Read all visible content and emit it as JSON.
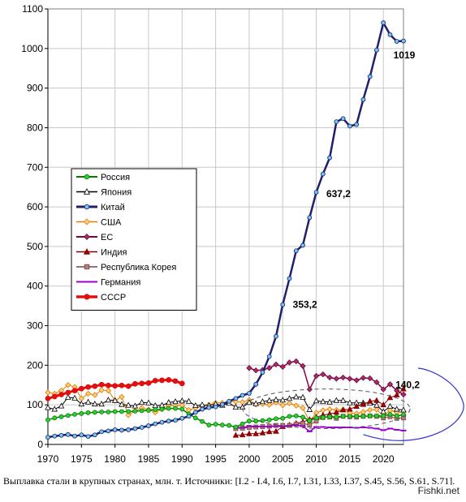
{
  "caption": "Выплавка стали в крупных странах, млн. т. Источники: [I.2 - I.4, I.6, I.7, I.31, I.33, I.37, S.45, S.56, S.61, S.71].",
  "watermark": "Fishki.net",
  "chart_data": {
    "type": "line",
    "title": "",
    "xlabel": "",
    "ylabel": "",
    "xlim": [
      1970,
      2023
    ],
    "ylim": [
      0,
      1100
    ],
    "xticks": [
      1970,
      1975,
      1980,
      1985,
      1990,
      1995,
      2000,
      2005,
      2010,
      2015,
      2020
    ],
    "yticks": [
      0,
      100,
      200,
      300,
      400,
      500,
      600,
      700,
      800,
      900,
      1000,
      1100
    ],
    "grid": "vertical and horizontal",
    "legend": "left-center",
    "annotations": [
      {
        "text": "1019",
        "x": 2021.5,
        "y": 975
      },
      {
        "text": "637,2",
        "x": 2011.5,
        "y": 625
      },
      {
        "text": "353,2",
        "x": 2006.5,
        "y": 345
      },
      {
        "text": "140,2",
        "x": 2021.8,
        "y": 142
      }
    ],
    "series": [
      {
        "name": "Россия",
        "color": "#008000",
        "marker_fill": "#33cc33",
        "marker": "circle",
        "width": 1.5,
        "x": [
          1970,
          1971,
          1972,
          1973,
          1974,
          1975,
          1976,
          1977,
          1978,
          1979,
          1980,
          1981,
          1982,
          1983,
          1984,
          1985,
          1986,
          1987,
          1988,
          1989,
          1990,
          1991,
          1992,
          1993,
          1994,
          1995,
          1996,
          1997,
          1998,
          1999,
          2000,
          2001,
          2002,
          2003,
          2004,
          2005,
          2006,
          2007,
          2008,
          2009,
          2010,
          2011,
          2012,
          2013,
          2014,
          2015,
          2016,
          2017,
          2018,
          2019,
          2020,
          2021,
          2022,
          2023
        ],
        "values": [
          62,
          67,
          70,
          73,
          76,
          78,
          80,
          81,
          82,
          82,
          83,
          83,
          83,
          84,
          85,
          86,
          88,
          89,
          91,
          91,
          89,
          77,
          67,
          58,
          49,
          51,
          49,
          48,
          44,
          52,
          59,
          59,
          60,
          62,
          65,
          66,
          71,
          72,
          69,
          60,
          67,
          68,
          70,
          69,
          71,
          71,
          71,
          71,
          72,
          72,
          72,
          76,
          72,
          75
        ]
      },
      {
        "name": "Япония",
        "color": "#000000",
        "marker_fill": "#ffffff",
        "marker": "triangle",
        "width": 1,
        "x": [
          1970,
          1971,
          1972,
          1973,
          1974,
          1975,
          1976,
          1977,
          1978,
          1979,
          1980,
          1981,
          1982,
          1983,
          1984,
          1985,
          1986,
          1987,
          1988,
          1989,
          1990,
          1991,
          1992,
          1993,
          1994,
          1995,
          1996,
          1997,
          1998,
          1999,
          2000,
          2001,
          2002,
          2003,
          2004,
          2005,
          2006,
          2007,
          2008,
          2009,
          2010,
          2011,
          2012,
          2013,
          2014,
          2015,
          2016,
          2017,
          2018,
          2019,
          2020,
          2021,
          2022,
          2023
        ],
        "values": [
          93,
          89,
          97,
          119,
          117,
          102,
          107,
          102,
          102,
          112,
          111,
          101,
          99,
          97,
          106,
          105,
          98,
          99,
          106,
          108,
          110,
          109,
          98,
          100,
          98,
          102,
          99,
          104,
          94,
          94,
          106,
          103,
          108,
          111,
          113,
          112,
          116,
          120,
          119,
          88,
          110,
          108,
          107,
          111,
          111,
          105,
          105,
          105,
          104,
          99,
          83,
          96,
          89,
          87
        ]
      },
      {
        "name": "Китай",
        "color": "#1f1f6b",
        "marker_fill": "#6ec6f0",
        "marker": "circle",
        "width": 2.5,
        "x": [
          1970,
          1971,
          1972,
          1973,
          1974,
          1975,
          1976,
          1977,
          1978,
          1979,
          1980,
          1981,
          1982,
          1983,
          1984,
          1985,
          1986,
          1987,
          1988,
          1989,
          1990,
          1991,
          1992,
          1993,
          1994,
          1995,
          1996,
          1997,
          1998,
          1999,
          2000,
          2001,
          2002,
          2003,
          2004,
          2005,
          2006,
          2007,
          2008,
          2009,
          2010,
          2011,
          2012,
          2013,
          2014,
          2015,
          2016,
          2017,
          2018,
          2019,
          2020,
          2021,
          2022,
          2023
        ],
        "values": [
          18,
          21,
          23,
          25,
          21,
          24,
          20,
          24,
          32,
          34,
          37,
          36,
          37,
          40,
          43,
          47,
          52,
          56,
          59,
          61,
          66,
          71,
          81,
          89,
          93,
          95,
          101,
          109,
          116,
          124,
          129,
          152,
          182,
          222,
          273,
          353,
          419,
          489,
          503,
          573,
          637,
          683,
          724,
          815,
          823,
          804,
          808,
          871,
          929,
          996,
          1065,
          1035,
          1018,
          1019
        ]
      },
      {
        "name": "США",
        "color": "#e07a00",
        "marker_fill": "#ffd080",
        "marker": "diamond",
        "width": 1,
        "x": [
          1970,
          1971,
          1972,
          1973,
          1974,
          1975,
          1976,
          1977,
          1978,
          1979,
          1980,
          1981,
          1982,
          1983,
          1984,
          1985,
          1986,
          1987,
          1988,
          1989,
          1990,
          1991,
          1992,
          1993,
          1994,
          1995,
          1996,
          1997,
          1998,
          1999,
          2000,
          2001,
          2002,
          2003,
          2004,
          2005,
          2006,
          2007,
          2008,
          2009,
          2010,
          2011,
          2012,
          2013,
          2014,
          2015,
          2016,
          2017,
          2018,
          2019,
          2020,
          2021,
          2022,
          2023
        ],
        "values": [
          131,
          128,
          136,
          150,
          145,
          116,
          128,
          125,
          137,
          136,
          111,
          120,
          74,
          85,
          92,
          88,
          81,
          89,
          99,
          97,
          99,
          87,
          92,
          97,
          100,
          105,
          105,
          108,
          108,
          107,
          112,
          101,
          102,
          100,
          106,
          99,
          104,
          98,
          92,
          58,
          80,
          86,
          89,
          87,
          88,
          79,
          78,
          82,
          87,
          88,
          72,
          86,
          81,
          82
        ]
      },
      {
        "name": "ЕС",
        "color": "#800040",
        "marker_fill": "#a0306a",
        "marker": "diamond",
        "width": 1.5,
        "x": [
          2000,
          2001,
          2002,
          2003,
          2004,
          2005,
          2006,
          2007,
          2008,
          2009,
          2010,
          2011,
          2012,
          2013,
          2014,
          2015,
          2016,
          2017,
          2018,
          2019,
          2020,
          2021,
          2022,
          2023
        ],
        "values": [
          193,
          187,
          188,
          193,
          202,
          196,
          207,
          210,
          198,
          139,
          173,
          177,
          169,
          166,
          169,
          166,
          162,
          168,
          167,
          157,
          139,
          152,
          136,
          126
        ]
      },
      {
        "name": "Индия",
        "color": "#800000",
        "marker_fill": "#a00000",
        "marker": "triangle",
        "width": 1,
        "x": [
          1998,
          1999,
          2000,
          2001,
          2002,
          2003,
          2004,
          2005,
          2006,
          2007,
          2008,
          2009,
          2010,
          2011,
          2012,
          2013,
          2014,
          2015,
          2016,
          2017,
          2018,
          2019,
          2020,
          2021,
          2022,
          2023
        ],
        "values": [
          23,
          24,
          27,
          27,
          29,
          32,
          33,
          45,
          49,
          53,
          57,
          63,
          69,
          74,
          77,
          81,
          87,
          89,
          96,
          101,
          109,
          111,
          100,
          118,
          125,
          140.2
        ]
      },
      {
        "name": "Республика Корея",
        "color": "#804040",
        "marker_fill": "#b08080",
        "marker": "square",
        "width": 1,
        "x": [
          1998,
          1999,
          2000,
          2001,
          2002,
          2003,
          2004,
          2005,
          2006,
          2007,
          2008,
          2009,
          2010,
          2011,
          2012,
          2013,
          2014,
          2015,
          2016,
          2017,
          2018,
          2019,
          2020,
          2021,
          2022,
          2023
        ],
        "values": [
          40,
          41,
          43,
          44,
          45,
          46,
          48,
          48,
          48,
          51,
          53,
          49,
          59,
          68,
          69,
          66,
          71,
          70,
          69,
          71,
          72,
          71,
          67,
          70,
          66,
          67
        ]
      },
      {
        "name": "Германия",
        "color": "#9900cc",
        "marker_fill": "#9900cc",
        "marker": "dash",
        "width": 1.5,
        "x": [
          1998,
          1999,
          2000,
          2001,
          2002,
          2003,
          2004,
          2005,
          2006,
          2007,
          2008,
          2009,
          2010,
          2011,
          2012,
          2013,
          2014,
          2015,
          2016,
          2017,
          2018,
          2019,
          2020,
          2021,
          2022,
          2023
        ],
        "values": [
          44,
          42,
          46,
          45,
          45,
          45,
          46,
          45,
          47,
          49,
          46,
          33,
          44,
          44,
          43,
          43,
          43,
          43,
          42,
          43,
          42,
          40,
          36,
          40,
          37,
          35
        ]
      },
      {
        "name": "СССР",
        "color": "#e01010",
        "marker_fill": "#e01010",
        "marker": "circle",
        "width": 3,
        "x": [
          1970,
          1971,
          1972,
          1973,
          1974,
          1975,
          1976,
          1977,
          1978,
          1979,
          1980,
          1981,
          1982,
          1983,
          1984,
          1985,
          1986,
          1987,
          1988,
          1989,
          1990
        ],
        "values": [
          116,
          121,
          126,
          131,
          136,
          141,
          145,
          147,
          151,
          149,
          148,
          149,
          147,
          153,
          154,
          155,
          161,
          162,
          163,
          160,
          154
        ]
      }
    ]
  }
}
